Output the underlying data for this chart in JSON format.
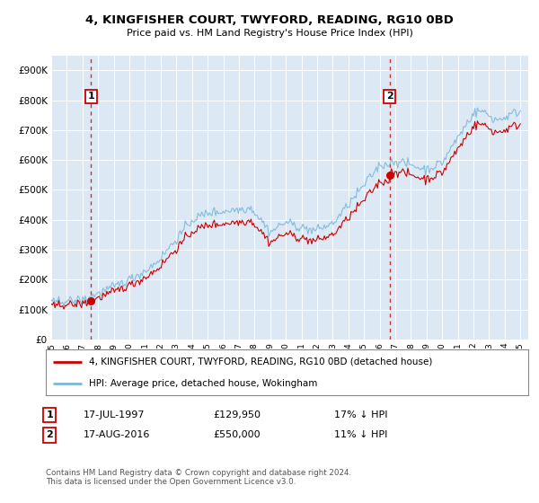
{
  "title": "4, KINGFISHER COURT, TWYFORD, READING, RG10 0BD",
  "subtitle": "Price paid vs. HM Land Registry's House Price Index (HPI)",
  "background_color": "#dce9f5",
  "hpi_color": "#7ab8d9",
  "sale_color": "#cc0000",
  "grid_color": "#ffffff",
  "annotation1_date": 1997.54,
  "annotation1_price": 129950,
  "annotation2_date": 2016.63,
  "annotation2_price": 550000,
  "legend_sale": "4, KINGFISHER COURT, TWYFORD, READING, RG10 0BD (detached house)",
  "legend_hpi": "HPI: Average price, detached house, Wokingham",
  "note1_date": "17-JUL-1997",
  "note1_price": "£129,950",
  "note1_pct": "17% ↓ HPI",
  "note2_date": "17-AUG-2016",
  "note2_price": "£550,000",
  "note2_pct": "11% ↓ HPI",
  "footer": "Contains HM Land Registry data © Crown copyright and database right 2024.\nThis data is licensed under the Open Government Licence v3.0.",
  "ylim": [
    0,
    950000
  ],
  "xlim_start": 1995.0,
  "xlim_end": 2025.5,
  "ytick_labels": [
    "£0",
    "£100K",
    "£200K",
    "£300K",
    "£400K",
    "£500K",
    "£600K",
    "£700K",
    "£800K",
    "£900K"
  ],
  "ytick_values": [
    0,
    100000,
    200000,
    300000,
    400000,
    500000,
    600000,
    700000,
    800000,
    900000
  ]
}
